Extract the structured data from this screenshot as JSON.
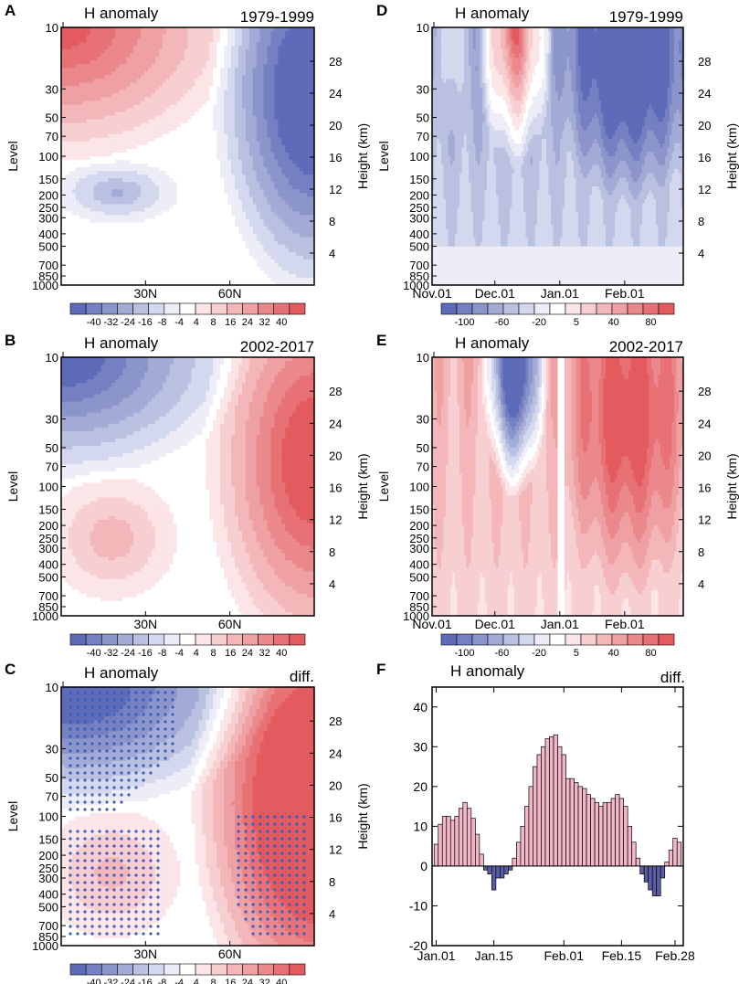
{
  "colors": {
    "blue_dark": "#5a68b5",
    "blue_mid": "#9ba5d6",
    "blue_light": "#d3d8ee",
    "white": "#ffffff",
    "red_light": "#f6cdcf",
    "red_mid": "#ee9ea1",
    "red_dark": "#e46a6e",
    "bar_pos": "#f2b7c6",
    "bar_neg": "#5b5ea6",
    "stipple": "#3b5fc0"
  },
  "palette": [
    "#5d6bb8",
    "#7480c1",
    "#8b95ca",
    "#a2abd5",
    "#b9c0e0",
    "#d3d8ee",
    "#ecedf7",
    "#ffffff",
    "#fbe5e6",
    "#f7cfd1",
    "#f3b7ba",
    "#efa0a3",
    "#eb888c",
    "#e77175",
    "#e35a5f"
  ],
  "colorbar_latlev": [
    "-40",
    "-32",
    "-24",
    "-16",
    "-8",
    "-4",
    "4",
    "8",
    "16",
    "24",
    "32",
    "40"
  ],
  "colorbar_time": [
    "-100",
    "-60",
    "-20",
    "5",
    "40",
    "80"
  ],
  "lev_ticks": [
    "10",
    "30",
    "50",
    "70",
    "100",
    "150",
    "200",
    "250",
    "300",
    "400",
    "500",
    "700",
    "850",
    "1000"
  ],
  "lev_values": [
    10,
    30,
    50,
    70,
    100,
    150,
    200,
    250,
    300,
    400,
    500,
    700,
    850,
    1000
  ],
  "height_ticks": [
    "28",
    "24",
    "20",
    "16",
    "12",
    "8",
    "4"
  ],
  "height_values": [
    28,
    24,
    20,
    16,
    12,
    8,
    4
  ],
  "lat_ticks": [
    "30N",
    "60N"
  ],
  "lat_values": [
    30,
    60
  ],
  "time_ticks": [
    "Nov.01",
    "Dec.01",
    "Jan.01",
    "Feb.01"
  ],
  "time_positions": [
    0,
    30,
    61,
    92
  ],
  "level_label": "Level",
  "height_label": "Height (km)",
  "panels": [
    {
      "letter": "A",
      "title": "H anomaly",
      "period": "1979-1999",
      "kind": "latlev"
    },
    {
      "letter": "B",
      "title": "H anomaly",
      "period": "2002-2017",
      "kind": "latlev"
    },
    {
      "letter": "C",
      "title": "H anomaly",
      "period": "diff.",
      "kind": "latlev"
    },
    {
      "letter": "D",
      "title": "H anomaly",
      "period": "1979-1999",
      "kind": "time"
    },
    {
      "letter": "E",
      "title": "H anomaly",
      "period": "2002-2017",
      "kind": "time"
    },
    {
      "letter": "F",
      "title": "H anomaly",
      "period": "diff.",
      "kind": "bar"
    }
  ],
  "chart_data": [
    {
      "panel": "A",
      "type": "heatmap",
      "title": "H anomaly",
      "subtitle": "1979-1999",
      "xlabel": "",
      "ylabel": "Level",
      "y2label": "Height (km)",
      "xlim": [
        0,
        90
      ],
      "ylim": [
        1000,
        10
      ],
      "xticks": [
        "30N",
        "60N"
      ],
      "yticks": [
        10,
        30,
        50,
        70,
        100,
        150,
        200,
        250,
        300,
        400,
        500,
        700,
        850,
        1000
      ],
      "colorbar": [
        -40,
        -32,
        -24,
        -16,
        -8,
        -4,
        4,
        8,
        16,
        24,
        32,
        40
      ],
      "description": "positive anomaly up to ~40 in upper levels south of 60N; strong negative (<-40) at high latitudes in stratosphere; weak negative (-8 to -16) around 200 hPa near 20N"
    },
    {
      "panel": "B",
      "type": "heatmap",
      "title": "H anomaly",
      "subtitle": "2002-2017",
      "xlabel": "",
      "ylabel": "Level",
      "y2label": "Height (km)",
      "xlim": [
        0,
        90
      ],
      "ylim": [
        1000,
        10
      ],
      "xticks": [
        "30N",
        "60N"
      ],
      "colorbar": [
        -40,
        -32,
        -24,
        -16,
        -8,
        -4,
        4,
        8,
        16,
        24,
        32,
        40
      ],
      "description": "negative anomaly in upper stratosphere at low latitudes; positive anomaly (~32-40) at high latitudes; weak positive (4-8) in troposphere"
    },
    {
      "panel": "C",
      "type": "heatmap",
      "title": "H anomaly",
      "subtitle": "diff.",
      "xlabel": "",
      "ylabel": "Level",
      "y2label": "Height (km)",
      "xlim": [
        0,
        90
      ],
      "ylim": [
        1000,
        10
      ],
      "xticks": [
        "30N",
        "60N"
      ],
      "colorbar": [
        -40,
        -32,
        -24,
        -16,
        -8,
        -4,
        4,
        8,
        16,
        24,
        32,
        40
      ],
      "description": "difference: negative in low-latitude stratosphere, positive >40 at high latitudes; stippling marks significant regions"
    },
    {
      "panel": "D",
      "type": "heatmap",
      "title": "H anomaly",
      "subtitle": "1979-1999",
      "xlabel": "",
      "ylabel": "Level",
      "y2label": "Height (km)",
      "xticks": [
        "Nov.01",
        "Dec.01",
        "Jan.01",
        "Feb.01"
      ],
      "colorbar": [
        -100,
        -60,
        -20,
        5,
        40,
        80
      ],
      "description": "positive anomalies in December stratosphere, negative anomalies dominating January-February"
    },
    {
      "panel": "E",
      "type": "heatmap",
      "title": "H anomaly",
      "subtitle": "2002-2017",
      "xlabel": "",
      "ylabel": "Level",
      "y2label": "Height (km)",
      "xticks": [
        "Nov.01",
        "Dec.01",
        "Jan.01",
        "Feb.01"
      ],
      "colorbar": [
        -100,
        -60,
        -20,
        5,
        40,
        80
      ],
      "description": "strong negative anomaly in December stratosphere, positive anomalies dominating January-February"
    },
    {
      "panel": "F",
      "type": "bar",
      "title": "H anomaly",
      "subtitle": "diff.",
      "xlabel": "",
      "ylabel": "",
      "ylim": [
        -20,
        45
      ],
      "yticks": [
        -20,
        -10,
        0,
        10,
        20,
        30,
        40
      ],
      "xticks": [
        "Jan.01",
        "Jan.15",
        "Feb.01",
        "Feb.15",
        "Feb.28"
      ],
      "xtick_days": [
        0,
        14,
        31,
        45,
        58
      ],
      "values": [
        5.5,
        10.5,
        12.5,
        12.5,
        11.5,
        12.5,
        14.5,
        16,
        14.5,
        12,
        8,
        3,
        -1,
        -2,
        -6,
        -3,
        -3,
        -2,
        -1,
        2,
        6,
        10,
        15,
        20,
        25,
        28,
        30,
        32,
        32.5,
        33,
        30,
        28,
        22,
        22,
        21,
        20,
        19.5,
        18,
        17,
        16,
        15,
        16,
        16,
        17,
        18,
        17,
        15,
        10,
        6,
        2,
        -2,
        -4,
        -6,
        -7.5,
        -7.5,
        -3,
        1,
        4,
        7,
        6
      ]
    }
  ]
}
